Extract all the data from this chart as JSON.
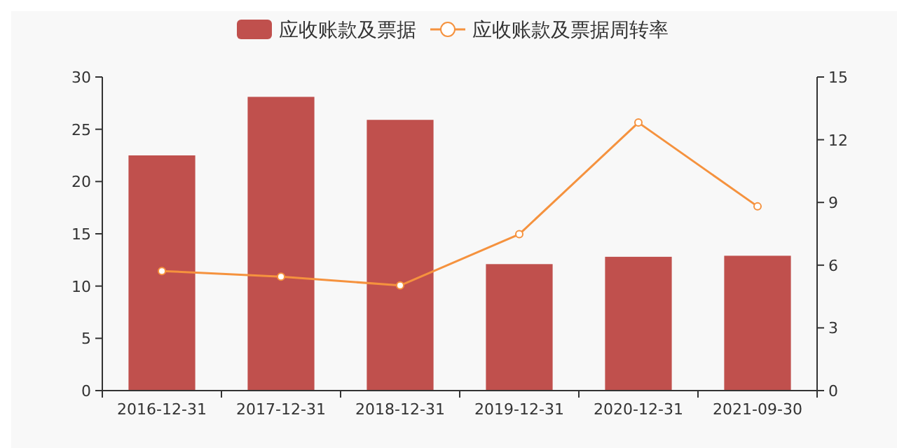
{
  "chart_data": {
    "type": "bar",
    "categories": [
      "2016-12-31",
      "2017-12-31",
      "2018-12-31",
      "2019-12-31",
      "2020-12-31",
      "2021-09-30"
    ],
    "series": [
      {
        "name": "应收账款及票据",
        "color": "#c0504d",
        "values": [
          22.5,
          28.1,
          25.9,
          12.1,
          12.8,
          12.9
        ]
      },
      {
        "name": "应收账款及票据周转率",
        "type": "line",
        "axis": "y2",
        "color": "#f5923e",
        "values": [
          5.72,
          5.45,
          5.03,
          7.48,
          12.82,
          8.81
        ]
      }
    ],
    "ylim": [
      0,
      30
    ],
    "yticks": [
      0,
      5,
      10,
      15,
      20,
      25,
      30
    ],
    "y2lim": [
      0,
      15
    ],
    "y2ticks": [
      0,
      3,
      6,
      9,
      12,
      15
    ],
    "legend": "top",
    "marker": "circle",
    "grid": false
  }
}
